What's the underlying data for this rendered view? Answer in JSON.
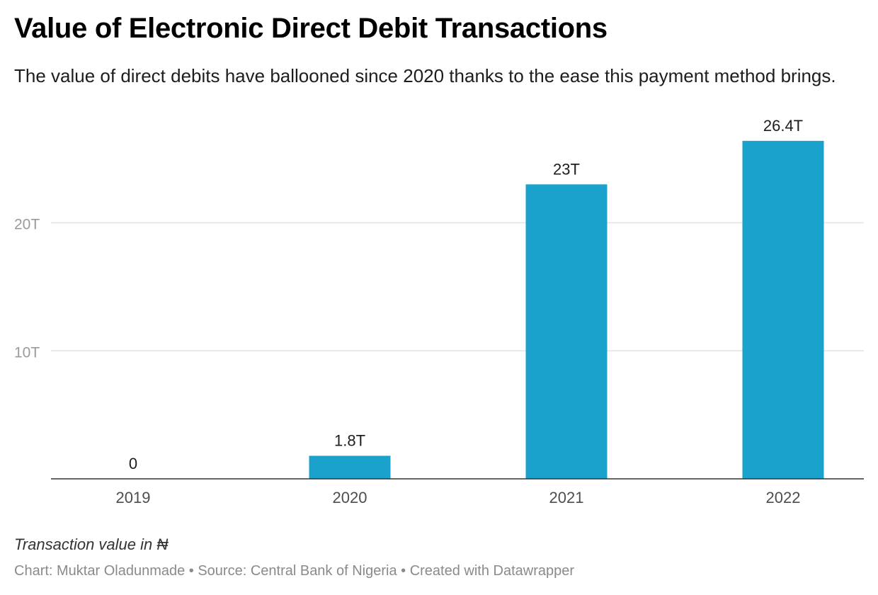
{
  "header": {
    "title": "Value of Electronic Direct Debit Transactions",
    "subtitle": "The value of direct debits have ballooned since 2020 thanks to the ease this payment method brings."
  },
  "chart_data": {
    "type": "bar",
    "title": "Value of Electronic Direct Debit Transactions",
    "xlabel": "",
    "ylabel": "",
    "categories": [
      "2019",
      "2020",
      "2021",
      "2022"
    ],
    "values": [
      0,
      1.8,
      23,
      26.4
    ],
    "value_labels": [
      "0",
      "1.8T",
      "23T",
      "26.4T"
    ],
    "unit": "T",
    "ylim": [
      0,
      27
    ],
    "yticks": [
      {
        "value": 10,
        "label": "10T"
      },
      {
        "value": 20,
        "label": "20T"
      }
    ],
    "grid": true,
    "bar_color": "#1aa1cc"
  },
  "notes": {
    "axis_note": "Transaction value in ₦",
    "byline": "Chart: Muktar Oladunmade • Source: Central Bank of Nigeria • Created with Datawrapper"
  }
}
